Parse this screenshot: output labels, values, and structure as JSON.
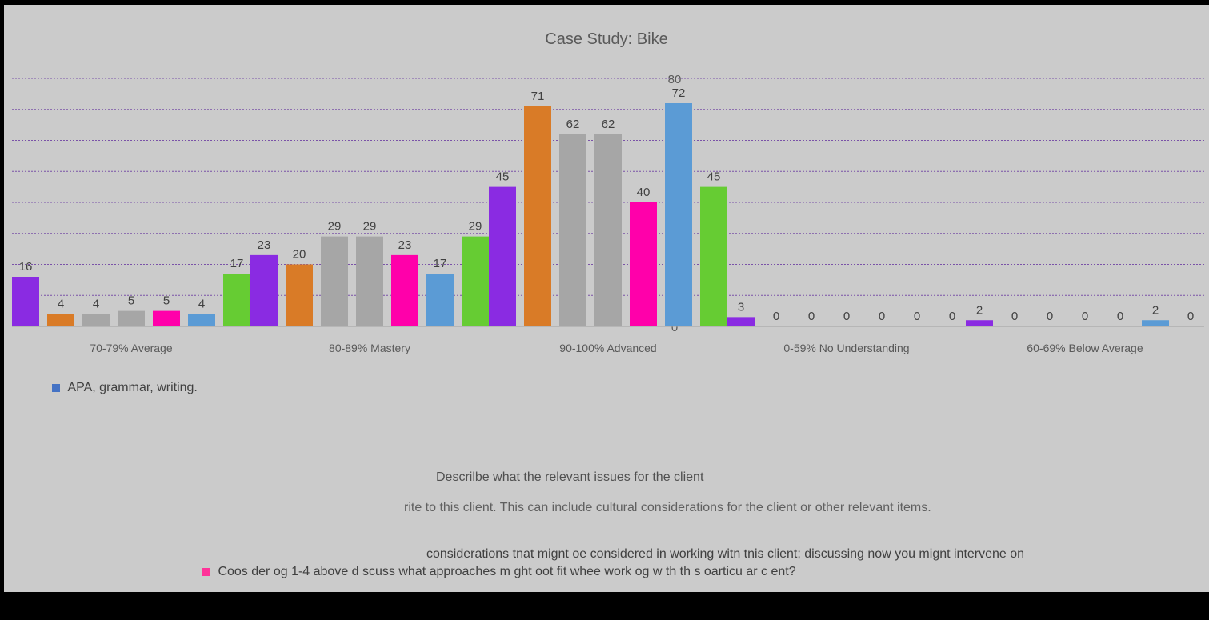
{
  "chart_data": {
    "type": "bar",
    "title": "Case Study: Bike",
    "categories": [
      "70-79% Average",
      "80-89% Mastery",
      "90-100% Advanced",
      "0-59% No Understanding",
      "60-69% Below Average"
    ],
    "ylim": [
      0,
      80
    ],
    "yticks": [
      0,
      10,
      20,
      30,
      40,
      50,
      60,
      70,
      80
    ],
    "grid": true,
    "legend_position": "bottom",
    "series": [
      {
        "name": "",
        "color": "#8a2be2",
        "values": [
          16,
          23,
          45,
          3,
          2
        ]
      },
      {
        "name": "",
        "color": "#d97b27",
        "values": [
          4,
          20,
          71,
          0,
          0
        ]
      },
      {
        "name": "",
        "color": "#a6a6a6",
        "values": [
          4,
          29,
          62,
          0,
          0
        ]
      },
      {
        "name": "",
        "color": "#a6a6a6",
        "values": [
          5,
          29,
          62,
          0,
          0
        ]
      },
      {
        "name": "",
        "color": "#ff00aa",
        "values": [
          5,
          23,
          40,
          0,
          0
        ]
      },
      {
        "name": "",
        "color": "#5b9bd5",
        "values": [
          4,
          17,
          72,
          0,
          2
        ]
      },
      {
        "name": "",
        "color": "#66cc33",
        "values": [
          17,
          29,
          45,
          0,
          0
        ]
      }
    ]
  },
  "legend": {
    "items": [
      {
        "label": "APA, grammar, writing.",
        "color": "#4472c4"
      },
      {
        "label": "considerations tnat mignt oe considered in working witn tnis client; discussing now you mignt intervene on",
        "color": "#cbcbcb"
      },
      {
        "label": "Coos der og 1-4 above d scuss what approaches m ght oot fit whee work og w th th s oarticu ar c ent?",
        "color": "#ff3399"
      }
    ],
    "fragment_1": "rite to this client. This can include cultural considerations for the client or other relevant items.",
    "fragment_2": "Descrilbe what the relevant issues for the client"
  }
}
